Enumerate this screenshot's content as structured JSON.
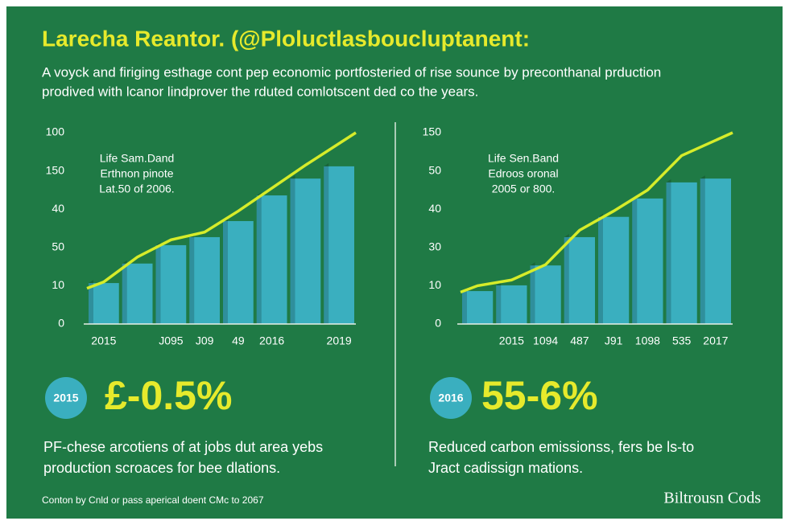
{
  "header": {
    "title": "Larecha Reantor. (@Ploluctlasboucluptanent:",
    "subtitle": [
      "A voyck and firiging esthage cont pep economic portfosteried of rise sounce by preconthanal prduction",
      "prodived with lcanor lindprover the rduted comlotscent ded co the years."
    ]
  },
  "chart_data": [
    {
      "type": "bar",
      "annotation": [
        "Life Sam.Dand",
        "Erthnon pinote",
        "Lat.50 of 2006."
      ],
      "categories": [
        "2015",
        null,
        "J095",
        "J09",
        "49",
        "2016",
        null,
        "2019"
      ],
      "series": [
        {
          "color": "#3aafbf",
          "values": [
            1.07,
            1.58,
            2.06,
            2.27,
            2.69,
            3.36,
            3.8,
            4.12
          ]
        },
        {
          "type": "line",
          "color": "#d6ec2a",
          "values": [
            1.1,
            1.75,
            2.2,
            2.4,
            2.95,
            3.55,
            4.15,
            5.0
          ]
        }
      ],
      "ylim": [
        0,
        5
      ],
      "yticks": [
        {
          "value": 0,
          "label": "0"
        },
        {
          "value": 1,
          "label": "10"
        },
        {
          "value": 2,
          "label": "50"
        },
        {
          "value": 3,
          "label": "40"
        },
        {
          "value": 4,
          "label": "150"
        },
        {
          "value": 5,
          "label": "100"
        }
      ]
    },
    {
      "type": "bar",
      "annotation": [
        "Life Sen.Band",
        "Edroos oronal",
        "2005 or 800."
      ],
      "categories": [
        null,
        "2015",
        "1094",
        "487",
        "J91",
        "1098",
        "535",
        "2017"
      ],
      "series": [
        {
          "color": "#3aafbf",
          "values": [
            0.86,
            1.01,
            1.53,
            2.27,
            2.8,
            3.28,
            3.7,
            3.8
          ]
        },
        {
          "type": "line",
          "color": "#d6ec2a",
          "values": [
            1.0,
            1.15,
            1.55,
            2.45,
            2.95,
            3.5,
            4.4,
            5.0
          ]
        }
      ],
      "ylim": [
        0,
        5
      ],
      "yticks": [
        {
          "value": 0,
          "label": "0"
        },
        {
          "value": 1,
          "label": "10"
        },
        {
          "value": 2,
          "label": "30"
        },
        {
          "value": 3,
          "label": "40"
        },
        {
          "value": 4,
          "label": "50"
        },
        {
          "value": 5,
          "label": "150"
        }
      ]
    }
  ],
  "stats": [
    {
      "badge": "2015",
      "value": "£-0.5%",
      "text": [
        "PF-chese arcotiens of at jobs dut area yebs",
        "production scroaces for bee dlations."
      ]
    },
    {
      "badge": "2016",
      "value": "55-6%",
      "text": [
        "Reduced carbon emissionss, fers be ls-to",
        "Jract cadissign mations."
      ]
    }
  ],
  "footer": {
    "note": "Conton by Cnld or pass aperical doent CMc to 2067",
    "brand": "Biltrousn Cods"
  }
}
